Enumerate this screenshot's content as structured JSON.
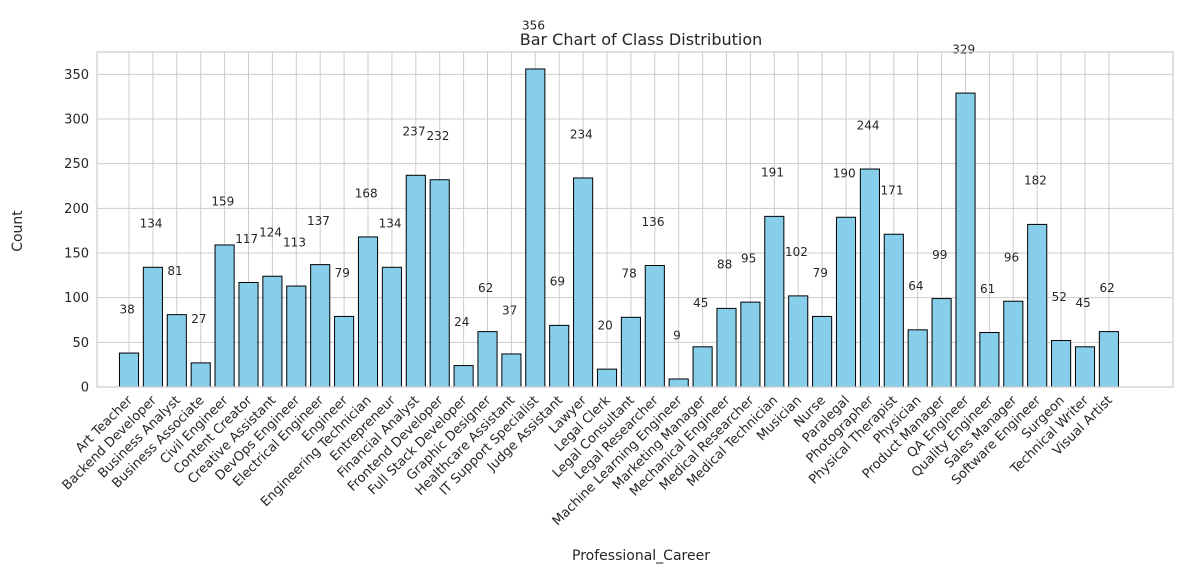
{
  "chart_data": {
    "type": "bar",
    "title": "Bar Chart of Class Distribution",
    "xlabel": "Professional_Career",
    "ylabel": "Count",
    "ylim": [
      0,
      375
    ],
    "yticks": [
      0,
      50,
      100,
      150,
      200,
      250,
      300,
      350
    ],
    "grid": true,
    "colors": {
      "bar_fill": "#87ceeb",
      "bar_edge": "#000000",
      "grid": "#cccccc",
      "axes_edge": "#cccccc"
    },
    "categories": [
      "Art Teacher",
      "Backend Developer",
      "Business Analyst",
      "Business Associate",
      "Civil Engineer",
      "Content Creator",
      "Creative Assistant",
      "DevOps Engineer",
      "Electrical Engineer",
      "Engineer",
      "Engineering Technician",
      "Entrepreneur",
      "Financial Analyst",
      "Frontend Developer",
      "Full Stack Developer",
      "Graphic Designer",
      "Healthcare Assistant",
      "IT Support Specialist",
      "Judge Assistant",
      "Lawyer",
      "Legal Clerk",
      "Legal Consultant",
      "Legal Researcher",
      "Machine Learning Engineer",
      "Marketing Manager",
      "Mechanical Engineer",
      "Medical Researcher",
      "Medical Technician",
      "Musician",
      "Nurse",
      "Paralegal",
      "Photographer",
      "Physical Therapist",
      "Physician",
      "Product Manager",
      "QA Engineer",
      "Quality Engineer",
      "Sales Manager",
      "Software Engineer",
      "Surgeon",
      "Technical Writer",
      "Visual Artist"
    ],
    "values": [
      38,
      134,
      81,
      27,
      159,
      117,
      124,
      113,
      137,
      79,
      168,
      134,
      237,
      232,
      24,
      62,
      37,
      356,
      69,
      234,
      20,
      78,
      136,
      9,
      45,
      88,
      95,
      191,
      102,
      79,
      190,
      244,
      171,
      64,
      99,
      329,
      61,
      96,
      182,
      52,
      45,
      62
    ]
  }
}
